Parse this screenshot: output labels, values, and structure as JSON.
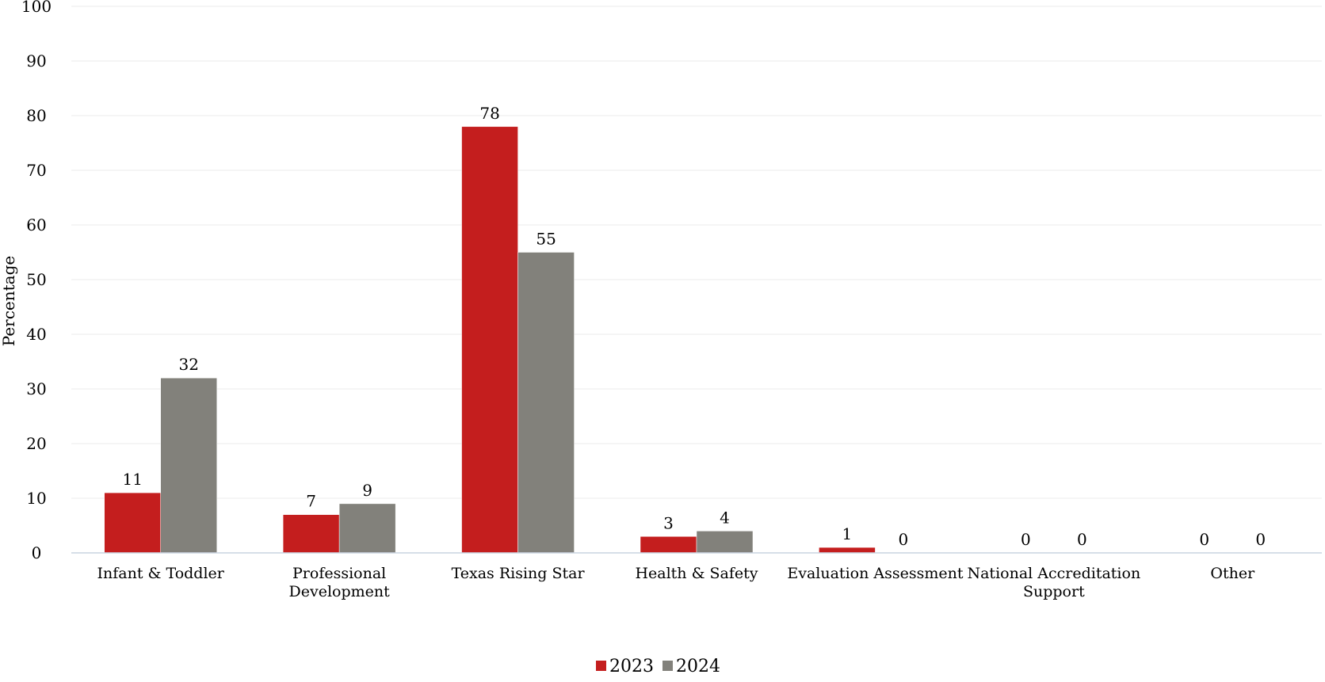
{
  "chart_data": {
    "type": "bar",
    "title": "",
    "xlabel": "",
    "ylabel": "Percentage",
    "ylim": [
      0,
      100
    ],
    "yticks": [
      0,
      10,
      20,
      30,
      40,
      50,
      60,
      70,
      80,
      90,
      100
    ],
    "grid": true,
    "legend_position": "bottom",
    "categories": [
      [
        "Infant & Toddler"
      ],
      [
        "Professional",
        "Development"
      ],
      [
        "Texas Rising Star"
      ],
      [
        "Health & Safety"
      ],
      [
        "Evaluation Assessment"
      ],
      [
        "National Accreditation",
        "Support"
      ],
      [
        "Other"
      ]
    ],
    "series": [
      {
        "name": "2023",
        "color": "#c41e1e",
        "values": [
          11,
          7,
          78,
          3,
          1,
          0,
          0
        ]
      },
      {
        "name": "2024",
        "color": "#82817b",
        "values": [
          32,
          9,
          55,
          4,
          0,
          0,
          0
        ]
      }
    ]
  }
}
